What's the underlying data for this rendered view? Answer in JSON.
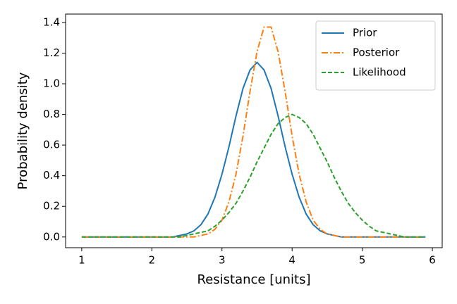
{
  "chart_data": {
    "type": "line",
    "xlabel": "Resistance [units]",
    "ylabel": "Probability density",
    "x": [
      1.0,
      1.1,
      1.2,
      1.3,
      1.4,
      1.5,
      1.6,
      1.7,
      1.8,
      1.9,
      2.0,
      2.1,
      2.2,
      2.3,
      2.4,
      2.5,
      2.6,
      2.7,
      2.8,
      2.9,
      3.0,
      3.1,
      3.2,
      3.3,
      3.4,
      3.5,
      3.6,
      3.7,
      3.8,
      3.9,
      4.0,
      4.1,
      4.2,
      4.3,
      4.4,
      4.5,
      4.6,
      4.7,
      4.8,
      4.9,
      5.0,
      5.1,
      5.2,
      5.3,
      5.4,
      5.5,
      5.6,
      5.7,
      5.8,
      5.9
    ],
    "series": [
      {
        "name": "Prior",
        "color": "#1f77b4",
        "linestyle": "solid",
        "values": [
          0,
          0,
          0,
          0,
          0,
          0,
          0,
          0,
          0,
          0,
          0,
          0,
          0,
          0,
          0.01,
          0.02,
          0.04,
          0.08,
          0.15,
          0.26,
          0.41,
          0.59,
          0.79,
          0.97,
          1.09,
          1.14,
          1.09,
          0.97,
          0.79,
          0.59,
          0.41,
          0.26,
          0.15,
          0.08,
          0.04,
          0.02,
          0.01,
          0,
          0,
          0,
          0,
          0,
          0,
          0,
          0,
          0,
          0,
          0,
          0,
          0
        ]
      },
      {
        "name": "Posterior",
        "color": "#ff7f0e",
        "linestyle": "dashdot",
        "values": [
          0,
          0,
          0,
          0,
          0,
          0,
          0,
          0,
          0,
          0,
          0,
          0,
          0,
          0,
          0,
          0,
          0,
          0.01,
          0.02,
          0.05,
          0.11,
          0.23,
          0.41,
          0.66,
          0.95,
          1.21,
          1.37,
          1.37,
          1.21,
          0.95,
          0.66,
          0.41,
          0.23,
          0.11,
          0.05,
          0.02,
          0.01,
          0,
          0,
          0,
          0,
          0,
          0,
          0,
          0,
          0,
          0,
          0,
          0,
          0
        ]
      },
      {
        "name": "Likelihood",
        "color": "#2ca02c",
        "linestyle": "dashed",
        "values": [
          0,
          0,
          0,
          0,
          0,
          0,
          0,
          0,
          0,
          0,
          0,
          0,
          0,
          0,
          0,
          0.01,
          0.02,
          0.03,
          0.04,
          0.07,
          0.11,
          0.16,
          0.22,
          0.3,
          0.39,
          0.49,
          0.58,
          0.67,
          0.74,
          0.78,
          0.8,
          0.78,
          0.74,
          0.67,
          0.58,
          0.49,
          0.39,
          0.3,
          0.22,
          0.16,
          0.11,
          0.07,
          0.04,
          0.03,
          0.02,
          0.01,
          0,
          0,
          0,
          0
        ]
      }
    ],
    "xlim": [
      0.77,
      6.14
    ],
    "xticks": [
      1,
      2,
      3,
      4,
      5,
      6
    ],
    "ylim": [
      -0.07,
      1.455
    ],
    "yticks": [
      {
        "value": 0,
        "label": "0.0"
      },
      0.2,
      0.4,
      0.6,
      0.8,
      {
        "value": 1,
        "label": "1.0"
      },
      1.2,
      1.4
    ],
    "grid": false,
    "legend": "upper right"
  }
}
